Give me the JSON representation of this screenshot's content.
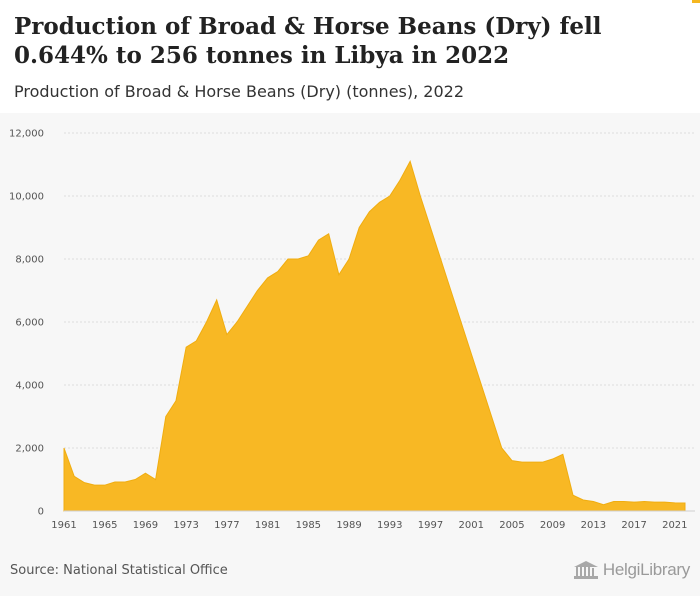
{
  "header": {
    "title": "Production of Broad & Horse Beans (Dry) fell 0.644% to 256 tonnes in Libya in 2022",
    "subtitle": "Production of Broad & Horse Beans (Dry) (tonnes), 2022"
  },
  "footer": {
    "source": "Source: National Statistical Office",
    "logo_text": "HelgiLibrary"
  },
  "colors": {
    "area_fill": "#f8b824",
    "area_stroke": "#f0ad10",
    "accent": "#f5b720"
  },
  "chart_data": {
    "type": "area",
    "ylim": [
      0,
      12000
    ],
    "y_ticks": [
      0,
      2000,
      4000,
      6000,
      8000,
      10000,
      12000
    ],
    "y_tick_labels": [
      "0",
      "2,000",
      "4,000",
      "6,000",
      "8,000",
      "10,000",
      "12,000"
    ],
    "x_ticks": [
      1961,
      1965,
      1969,
      1973,
      1977,
      1981,
      1985,
      1989,
      1993,
      1997,
      2001,
      2005,
      2009,
      2013,
      2017,
      2021
    ],
    "xlim": [
      1961,
      2022
    ],
    "grid": true,
    "x": [
      1961,
      1962,
      1963,
      1964,
      1965,
      1966,
      1967,
      1968,
      1969,
      1970,
      1971,
      1972,
      1973,
      1974,
      1975,
      1976,
      1977,
      1978,
      1979,
      1980,
      1981,
      1982,
      1983,
      1984,
      1985,
      1986,
      1987,
      1988,
      1989,
      1990,
      1991,
      1992,
      1993,
      1994,
      1995,
      1996,
      1997,
      1998,
      1999,
      2000,
      2001,
      2002,
      2003,
      2004,
      2005,
      2006,
      2007,
      2008,
      2009,
      2010,
      2011,
      2012,
      2013,
      2014,
      2015,
      2016,
      2017,
      2018,
      2019,
      2020,
      2021,
      2022
    ],
    "values": [
      2000,
      1100,
      900,
      820,
      820,
      920,
      920,
      1000,
      1200,
      1000,
      3000,
      3500,
      5200,
      5400,
      6000,
      6700,
      5600,
      6000,
      6500,
      7000,
      7400,
      7600,
      8000,
      8000,
      8100,
      8600,
      8800,
      7500,
      8000,
      9000,
      9500,
      9800,
      10000,
      10500,
      11100,
      10000,
      9000,
      8000,
      7000,
      6000,
      5000,
      4000,
      3000,
      2000,
      1600,
      1550,
      1550,
      1550,
      1650,
      1800,
      500,
      350,
      300,
      200,
      300,
      300,
      280,
      300,
      280,
      280,
      258,
      256
    ]
  }
}
